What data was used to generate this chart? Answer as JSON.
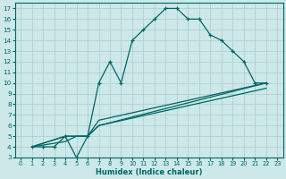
{
  "xlabel": "Humidex (Indice chaleur)",
  "bg_color": "#cce8e8",
  "grid_color": "#aacccc",
  "line_color": "#006666",
  "xlim": [
    -0.5,
    23.5
  ],
  "ylim": [
    3,
    17.5
  ],
  "xticks": [
    0,
    1,
    2,
    3,
    4,
    5,
    6,
    7,
    8,
    9,
    10,
    11,
    12,
    13,
    14,
    15,
    16,
    17,
    18,
    19,
    20,
    21,
    22,
    23
  ],
  "yticks": [
    3,
    4,
    5,
    6,
    7,
    8,
    9,
    10,
    11,
    12,
    13,
    14,
    15,
    16,
    17
  ],
  "line1_x": [
    1,
    2,
    3,
    4,
    5,
    6,
    7,
    8,
    9,
    10,
    11,
    12,
    13,
    14,
    15,
    16,
    17,
    18,
    19,
    20,
    21,
    22
  ],
  "line1_y": [
    4,
    4,
    4,
    5,
    3,
    5,
    10,
    12,
    10,
    14,
    15,
    16,
    17,
    17,
    16,
    16,
    14.5,
    14,
    13,
    12,
    10,
    10
  ],
  "line2_x": [
    1,
    4,
    5,
    6,
    7,
    22
  ],
  "line2_y": [
    4,
    5,
    5,
    5,
    6,
    10
  ],
  "line3_x": [
    1,
    4,
    5,
    6,
    7,
    22
  ],
  "line3_y": [
    4,
    5,
    5,
    5,
    6.5,
    10
  ],
  "line4_x": [
    1,
    4,
    5,
    6,
    7,
    22
  ],
  "line4_y": [
    4,
    4.5,
    5,
    5,
    6,
    9.5
  ]
}
